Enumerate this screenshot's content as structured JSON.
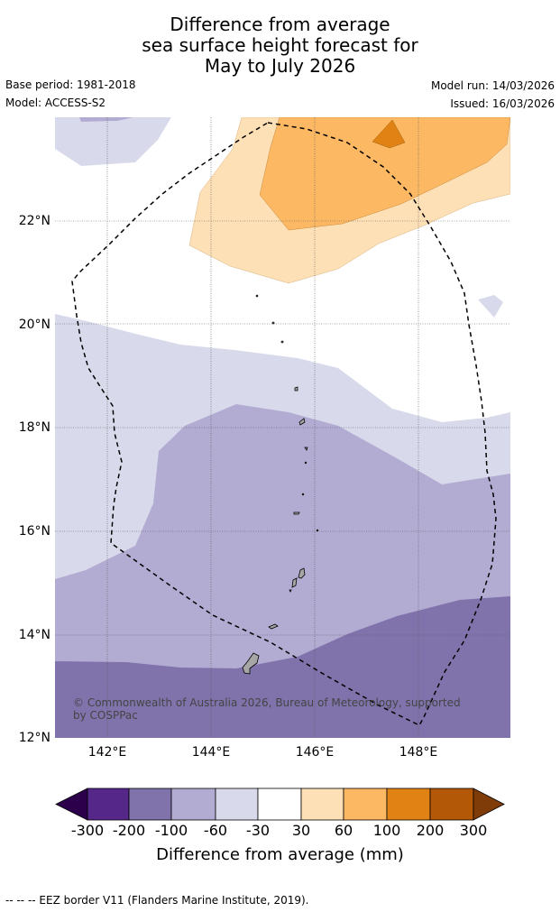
{
  "title": {
    "line1": "Difference from average",
    "line2": "sea surface height forecast for",
    "line3": "May to July 2026"
  },
  "meta": {
    "base_period": "Base period: 1981-2018",
    "model": "Model: ACCESS-S2",
    "model_run": "Model run: 14/03/2026",
    "issued": "Issued: 16/03/2026"
  },
  "map": {
    "lat_ticks": [
      "22°N",
      "20°N",
      "18°N",
      "16°N",
      "14°N",
      "12°N"
    ],
    "lon_ticks": [
      "142°E",
      "144°E",
      "146°E",
      "148°E"
    ],
    "copyright": "© Commonwealth of Australia 2026, Bureau of Meteorology, supported by COSPPac"
  },
  "colorbar": {
    "ticks": [
      "-300",
      "-200",
      "-100",
      "-60",
      "-30",
      "30",
      "60",
      "100",
      "200",
      "300"
    ],
    "label": "Difference from average (mm)",
    "colors": {
      "below_min": "#2d004b",
      "n300_n200": "#542788",
      "n200_n100": "#8073ac",
      "n100_n60": "#b2abd2",
      "n60_n30": "#d8daeb",
      "n30_30": "#ffffff",
      "p30_60": "#fee0b6",
      "p60_100": "#fdb863",
      "p100_200": "#e08214",
      "p200_300": "#b35806",
      "above_max": "#7f3b08"
    }
  },
  "footer": "--  --  -- EEZ border V11 (Flanders Marine Institute, 2019)."
}
